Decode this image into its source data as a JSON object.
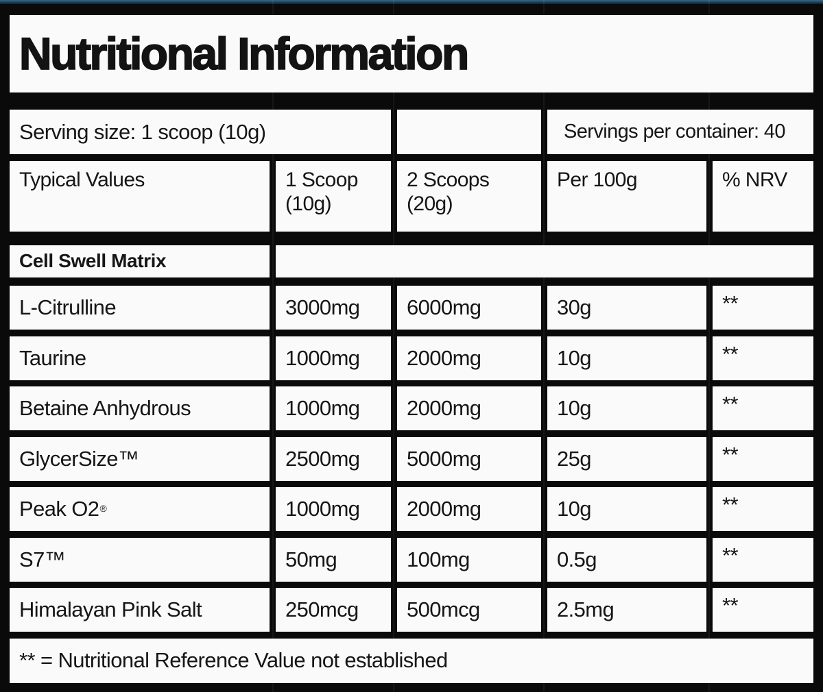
{
  "title": "Nutritional Information",
  "serving": {
    "size": "Serving size: 1 scoop (10g)",
    "per_container": "Servings per container: 40"
  },
  "header": {
    "typical_values": "Typical Values",
    "one_scoop": "1 Scoop\n(10g)",
    "two_scoops": "2 Scoops\n(20g)",
    "per_100g": "Per 100g",
    "nrv": "% NRV"
  },
  "section_title": "Cell Swell Matrix",
  "rows": [
    {
      "name": "L-Citrulline",
      "mark": "",
      "one_scoop": "3000mg",
      "two_scoops": "6000mg",
      "per_100g": "30g",
      "nrv": "**"
    },
    {
      "name": "Taurine",
      "mark": "",
      "one_scoop": "1000mg",
      "two_scoops": "2000mg",
      "per_100g": "10g",
      "nrv": "**"
    },
    {
      "name": "Betaine Anhydrous",
      "mark": "",
      "one_scoop": "1000mg",
      "two_scoops": "2000mg",
      "per_100g": "10g",
      "nrv": "**"
    },
    {
      "name": "GlycerSize™",
      "mark": "",
      "one_scoop": "2500mg",
      "two_scoops": "5000mg",
      "per_100g": "25g",
      "nrv": "**"
    },
    {
      "name": "Peak O2",
      "mark": "®",
      "one_scoop": "1000mg",
      "two_scoops": "2000mg",
      "per_100g": "10g",
      "nrv": "**"
    },
    {
      "name": "S7™",
      "mark": "",
      "one_scoop": "50mg",
      "two_scoops": "100mg",
      "per_100g": "0.5g",
      "nrv": "**"
    },
    {
      "name": "Himalayan Pink Salt",
      "mark": "",
      "one_scoop": "250mcg",
      "two_scoops": "500mcg",
      "per_100g": "2.5mg",
      "nrv": "**"
    }
  ],
  "footnote": "** = Nutritional Reference Value not established",
  "colors": {
    "background": "#0a0a0a",
    "cell": "#fafafa",
    "text": "#161616",
    "top_stripe": "#1d4258"
  }
}
